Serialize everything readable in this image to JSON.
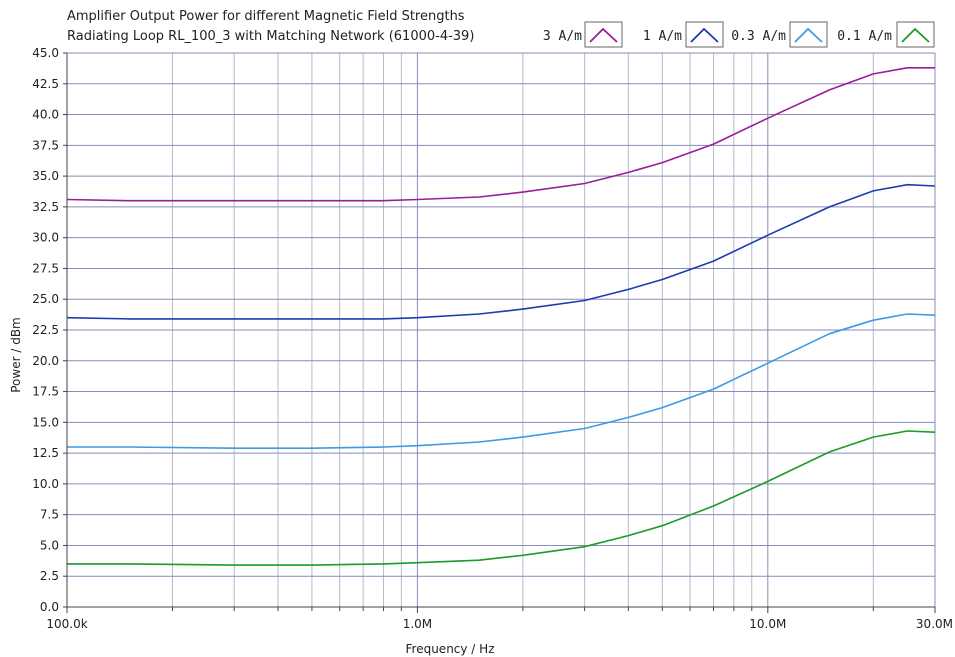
{
  "chart_data": {
    "type": "line",
    "title": "Amplifier Output Power for different Magnetic Field Strengths",
    "subtitle": "Radiating Loop RL_100_3 with Matching Network (61000-4-39)",
    "xlabel": "Frequency / Hz",
    "ylabel": "Power / dBm",
    "xscale": "log",
    "xlim": [
      100000,
      30000000
    ],
    "ylim": [
      0,
      45
    ],
    "grid": true,
    "legend_position": "top-right",
    "x_ticks": [
      {
        "value": 100000,
        "label": "100.0k"
      },
      {
        "value": 1000000,
        "label": "1.0M"
      },
      {
        "value": 10000000,
        "label": "10.0M"
      },
      {
        "value": 30000000,
        "label": "30.0M"
      }
    ],
    "y_ticks": [
      {
        "value": 0,
        "label": "0.0"
      },
      {
        "value": 2.5,
        "label": "2.5"
      },
      {
        "value": 5,
        "label": "5.0"
      },
      {
        "value": 7.5,
        "label": "7.5"
      },
      {
        "value": 10,
        "label": "10.0"
      },
      {
        "value": 12.5,
        "label": "12.5"
      },
      {
        "value": 15,
        "label": "15.0"
      },
      {
        "value": 17.5,
        "label": "17.5"
      },
      {
        "value": 20,
        "label": "20.0"
      },
      {
        "value": 22.5,
        "label": "22.5"
      },
      {
        "value": 25,
        "label": "25.0"
      },
      {
        "value": 27.5,
        "label": "27.5"
      },
      {
        "value": 30,
        "label": "30.0"
      },
      {
        "value": 32.5,
        "label": "32.5"
      },
      {
        "value": 35,
        "label": "35.0"
      },
      {
        "value": 37.5,
        "label": "37.5"
      },
      {
        "value": 40,
        "label": "40.0"
      },
      {
        "value": 42.5,
        "label": "42.5"
      },
      {
        "value": 45,
        "label": "45.0"
      }
    ],
    "series": [
      {
        "name": "3 A/m",
        "color": "#9a1c9a",
        "points": [
          [
            100000,
            33.1
          ],
          [
            150000,
            33.0
          ],
          [
            300000,
            33.0
          ],
          [
            500000,
            33.0
          ],
          [
            800000,
            33.0
          ],
          [
            1000000,
            33.1
          ],
          [
            1500000,
            33.3
          ],
          [
            2000000,
            33.7
          ],
          [
            3000000,
            34.4
          ],
          [
            4000000,
            35.3
          ],
          [
            5000000,
            36.1
          ],
          [
            7000000,
            37.6
          ],
          [
            10000000,
            39.7
          ],
          [
            15000000,
            42.0
          ],
          [
            20000000,
            43.3
          ],
          [
            25000000,
            43.8
          ],
          [
            30000000,
            43.8
          ]
        ]
      },
      {
        "name": "1 A/m",
        "color": "#1a3cb0",
        "points": [
          [
            100000,
            23.5
          ],
          [
            150000,
            23.4
          ],
          [
            300000,
            23.4
          ],
          [
            500000,
            23.4
          ],
          [
            800000,
            23.4
          ],
          [
            1000000,
            23.5
          ],
          [
            1500000,
            23.8
          ],
          [
            2000000,
            24.2
          ],
          [
            3000000,
            24.9
          ],
          [
            4000000,
            25.8
          ],
          [
            5000000,
            26.6
          ],
          [
            7000000,
            28.1
          ],
          [
            10000000,
            30.2
          ],
          [
            15000000,
            32.5
          ],
          [
            20000000,
            33.8
          ],
          [
            25000000,
            34.3
          ],
          [
            30000000,
            34.2
          ]
        ]
      },
      {
        "name": "0.3 A/m",
        "color": "#3c9ae6",
        "points": [
          [
            100000,
            13.0
          ],
          [
            150000,
            13.0
          ],
          [
            300000,
            12.9
          ],
          [
            500000,
            12.9
          ],
          [
            800000,
            13.0
          ],
          [
            1000000,
            13.1
          ],
          [
            1500000,
            13.4
          ],
          [
            2000000,
            13.8
          ],
          [
            3000000,
            14.5
          ],
          [
            4000000,
            15.4
          ],
          [
            5000000,
            16.2
          ],
          [
            7000000,
            17.7
          ],
          [
            10000000,
            19.8
          ],
          [
            15000000,
            22.2
          ],
          [
            20000000,
            23.3
          ],
          [
            25000000,
            23.8
          ],
          [
            30000000,
            23.7
          ]
        ]
      },
      {
        "name": "0.1 A/m",
        "color": "#1e9a28",
        "points": [
          [
            100000,
            3.5
          ],
          [
            150000,
            3.5
          ],
          [
            300000,
            3.4
          ],
          [
            500000,
            3.4
          ],
          [
            800000,
            3.5
          ],
          [
            1000000,
            3.6
          ],
          [
            1500000,
            3.8
          ],
          [
            2000000,
            4.2
          ],
          [
            3000000,
            4.9
          ],
          [
            4000000,
            5.8
          ],
          [
            5000000,
            6.6
          ],
          [
            7000000,
            8.2
          ],
          [
            10000000,
            10.2
          ],
          [
            15000000,
            12.6
          ],
          [
            20000000,
            13.8
          ],
          [
            25000000,
            14.3
          ],
          [
            30000000,
            14.2
          ]
        ]
      }
    ]
  }
}
